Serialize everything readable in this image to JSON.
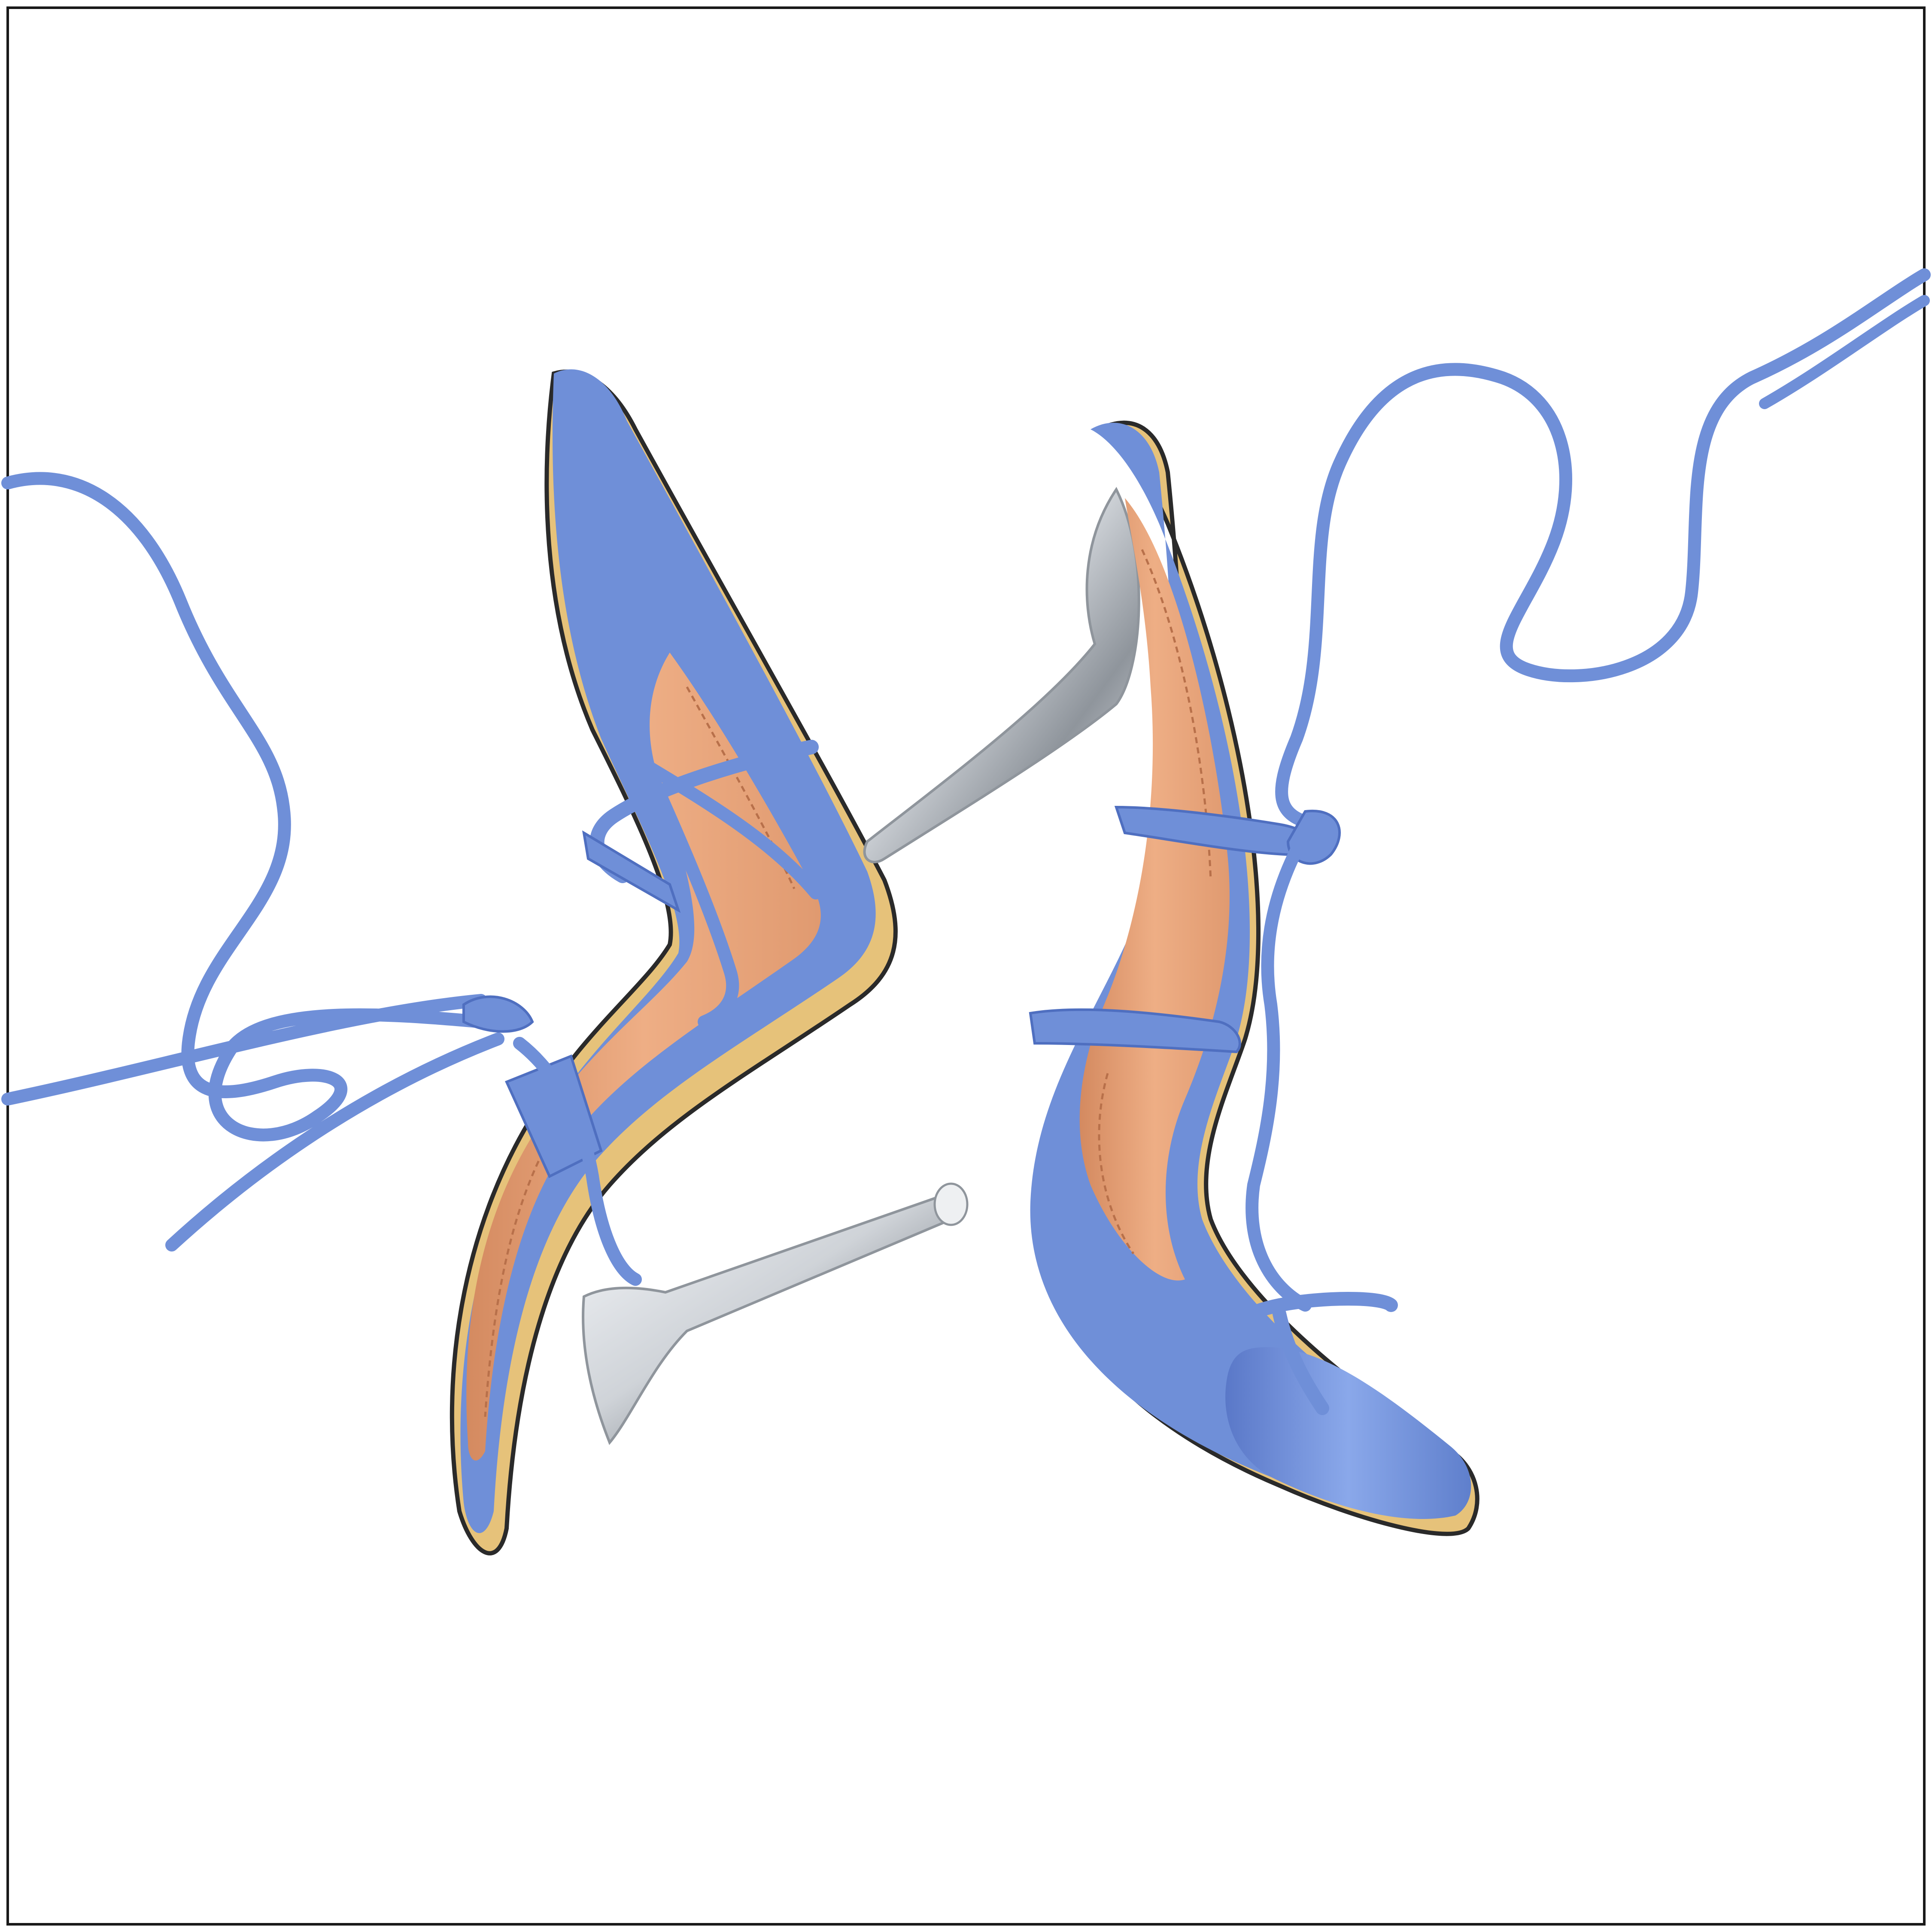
{
  "photo": {
    "subject": "pair-of-lace-up-heeled-sandals",
    "colors": {
      "background": "#ffffff",
      "frame_border": "#1a1a1a",
      "strap_blue": "#6f8fd8",
      "strap_blue_light": "#8aa8ea",
      "strap_blue_dark": "#4f6fc0",
      "insole_tan": "#e8a478",
      "insole_shadow": "#d48a60",
      "sole_yellow": "#e6c27a",
      "sole_edge_dark": "#2a2a2a",
      "heel_silver": "#cfd3d8",
      "heel_silver_dark": "#8f959c",
      "heel_highlight": "#f5f7fa"
    }
  }
}
